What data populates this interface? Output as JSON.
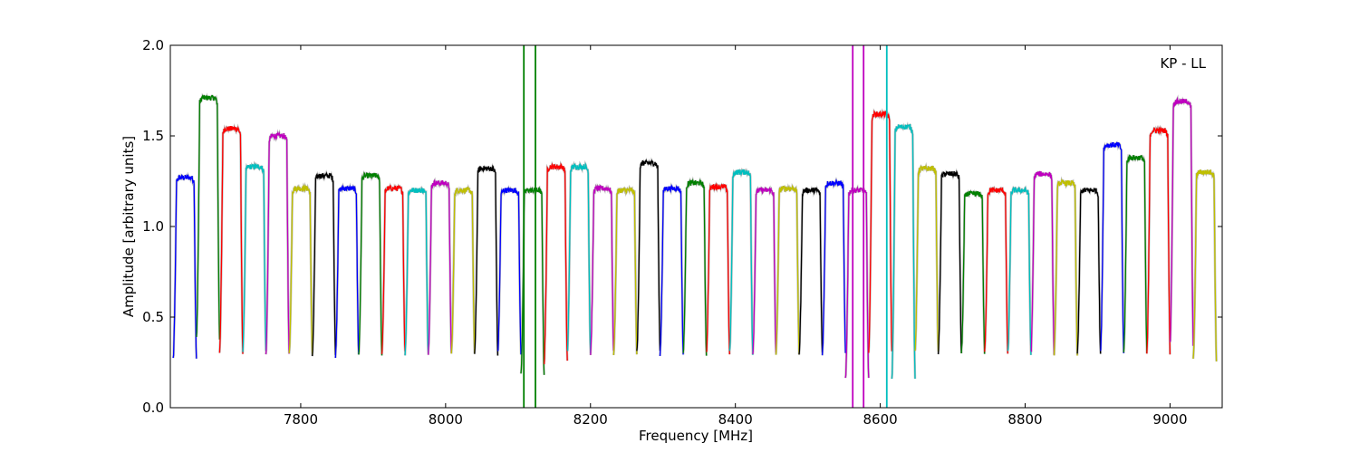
{
  "chart_data": {
    "type": "line",
    "title": "",
    "xlabel": "Frequency [MHz]",
    "ylabel": "Amplitude [arbitrary units]",
    "xlim": [
      7620,
      9072
    ],
    "ylim": [
      0.0,
      2.0
    ],
    "x_ticks": [
      7800,
      8000,
      8200,
      8400,
      8600,
      8800,
      9000
    ],
    "y_ticks": [
      0.0,
      0.5,
      1.0,
      1.5,
      2.0
    ],
    "x_tick_labels": [
      "7800",
      "8000",
      "8200",
      "8400",
      "8600",
      "8800",
      "9000"
    ],
    "y_tick_labels": [
      "0.0",
      "0.5",
      "1.0",
      "1.5",
      "2.0"
    ],
    "annotation": "KP - LL",
    "grid": false,
    "background_series_color": "#bfbfbf",
    "channel_width_mhz": 32,
    "channel_centers": [
      7640,
      7672,
      7704,
      7736,
      7768,
      7800,
      7832,
      7864,
      7896,
      7928,
      7960,
      7992,
      8024,
      8056,
      8088,
      8120,
      8152,
      8184,
      8216,
      8248,
      8280,
      8312,
      8344,
      8376,
      8408,
      8440,
      8472,
      8504,
      8536,
      8568,
      8600,
      8632,
      8664,
      8696,
      8728,
      8760,
      8792,
      8824,
      8856,
      8888,
      8920,
      8952,
      8984,
      9016,
      9048
    ],
    "channel_colors": [
      "#0000ff",
      "#008000",
      "#ff0000",
      "#00bfbf",
      "#bf00bf",
      "#bfbf00",
      "#000000",
      "#0000ff",
      "#008000",
      "#ff0000",
      "#00bfbf",
      "#bf00bf",
      "#bfbf00",
      "#000000",
      "#0000ff",
      "#008000",
      "#ff0000",
      "#00bfbf",
      "#bf00bf",
      "#bfbf00",
      "#000000",
      "#0000ff",
      "#008000",
      "#ff0000",
      "#00bfbf",
      "#bf00bf",
      "#bfbf00",
      "#000000",
      "#0000ff",
      "#bf00bf",
      "#ff0000",
      "#00bfbf",
      "#bfbf00",
      "#000000",
      "#008000",
      "#ff0000",
      "#00bfbf",
      "#bf00bf",
      "#bfbf00",
      "#000000",
      "#0000ff",
      "#008000",
      "#ff0000",
      "#bf00bf",
      "#bfbf00"
    ],
    "channel_peaks": [
      1.27,
      1.71,
      1.54,
      1.33,
      1.5,
      1.21,
      1.28,
      1.21,
      1.28,
      1.21,
      1.2,
      1.24,
      1.2,
      1.32,
      1.2,
      1.2,
      1.33,
      1.33,
      1.21,
      1.2,
      1.35,
      1.21,
      1.24,
      1.22,
      1.3,
      1.2,
      1.21,
      1.2,
      1.24,
      1.2,
      1.62,
      1.55,
      1.32,
      1.29,
      1.18,
      1.2,
      1.2,
      1.29,
      1.24,
      1.2,
      1.45,
      1.38,
      1.53,
      1.69,
      1.3
    ],
    "channel_troughs": [
      0.27,
      0.38,
      0.31,
      0.31,
      0.3,
      0.29,
      0.29,
      0.29,
      0.29,
      0.3,
      0.3,
      0.3,
      0.3,
      0.3,
      0.3,
      0.18,
      0.25,
      0.3,
      0.3,
      0.3,
      0.3,
      0.3,
      0.3,
      0.3,
      0.3,
      0.3,
      0.3,
      0.3,
      0.3,
      0.15,
      0.3,
      0.17,
      0.3,
      0.3,
      0.3,
      0.3,
      0.3,
      0.3,
      0.3,
      0.3,
      0.3,
      0.3,
      0.3,
      0.35,
      0.26
    ],
    "rfi_spikes": [
      {
        "x": 8108,
        "color": "#008000"
      },
      {
        "x": 8124,
        "color": "#008000"
      },
      {
        "x": 8562,
        "color": "#bf00bf"
      },
      {
        "x": 8577,
        "color": "#bf00bf"
      },
      {
        "x": 8609,
        "color": "#00bfbf"
      }
    ]
  }
}
